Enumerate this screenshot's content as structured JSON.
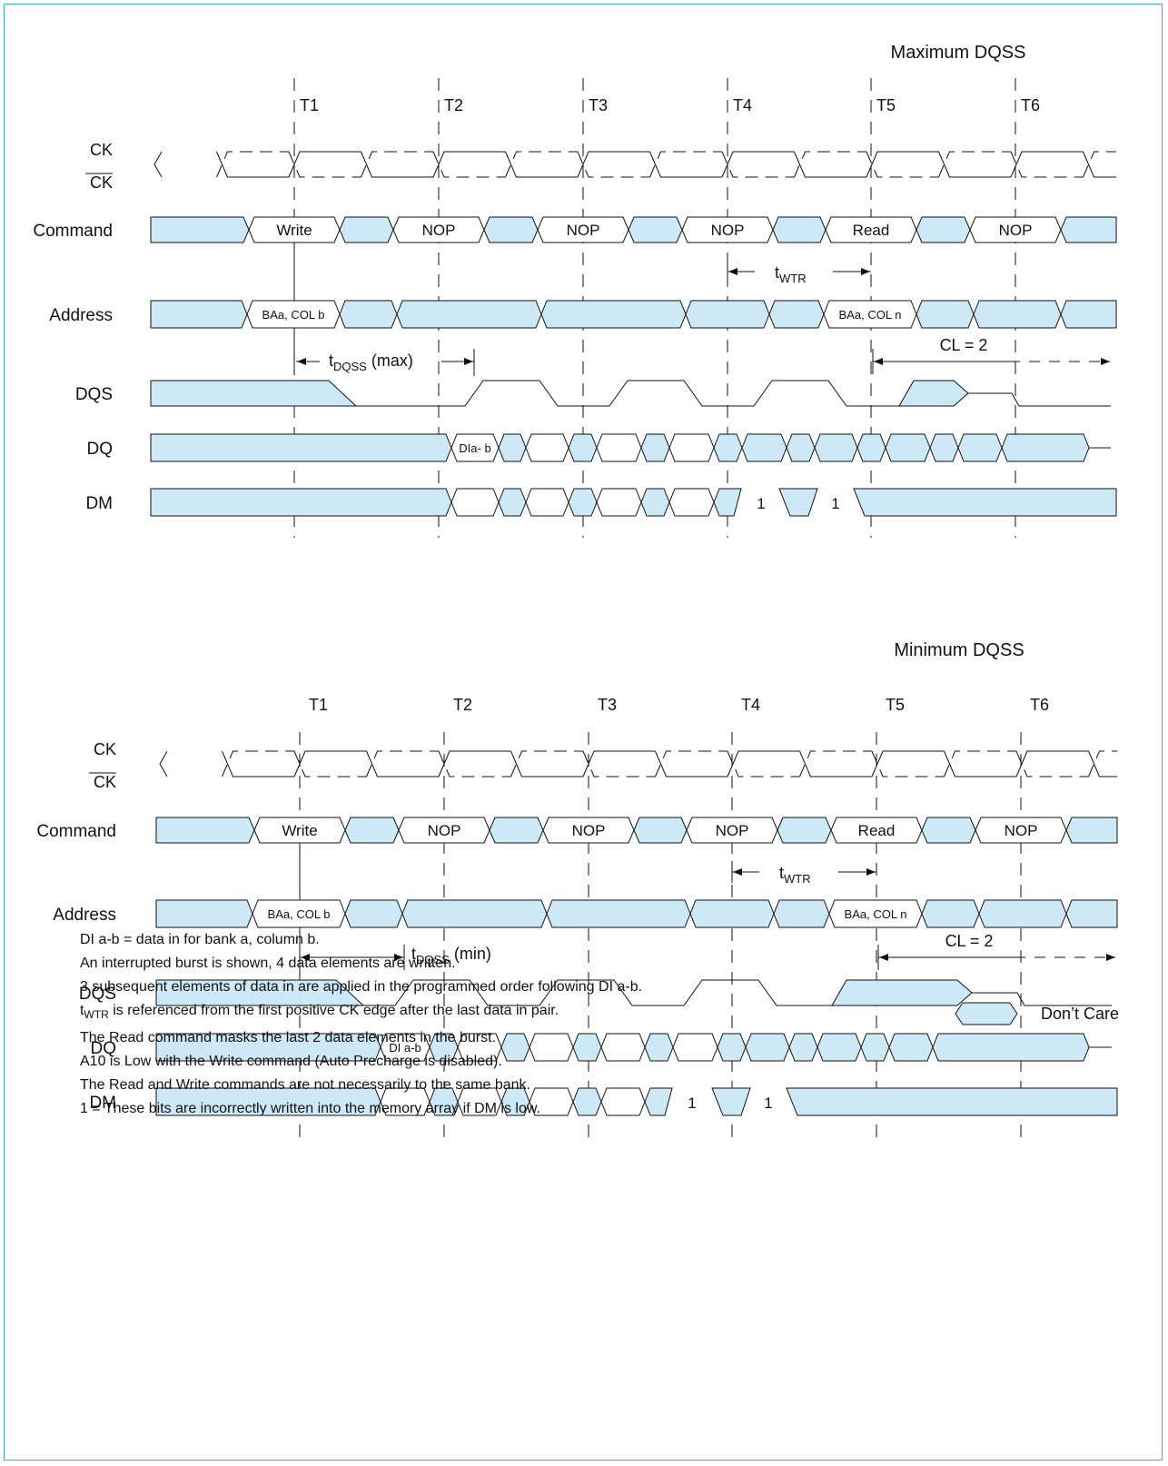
{
  "colors": {
    "dont_care": "#cde8f6",
    "stroke": "#111111",
    "frame": "#4aa3d8"
  },
  "panels": [
    {
      "title": "Maximum DQSS",
      "ticks": [
        "T1",
        "T2",
        "T3",
        "T4",
        "T5",
        "T6"
      ],
      "signals": {
        "ck": "CK",
        "ck_bar": "CK",
        "command": "Command",
        "address": "Address",
        "dqs": "DQS",
        "dq": "DQ",
        "dm": "DM"
      },
      "commands": [
        "Write",
        "NOP",
        "NOP",
        "NOP",
        "Read",
        "NOP"
      ],
      "address": [
        "BAa, COL b",
        "BAa, COL n"
      ],
      "dq_label": "DIa- b",
      "dm_ones": [
        "1",
        "1"
      ],
      "twtr": {
        "t": "t",
        "sub": "WTR"
      },
      "tdqss": {
        "t": "t",
        "sub": "DQSS",
        "suffix": " (max)"
      },
      "cl": "CL = 2"
    },
    {
      "title": "Minimum DQSS",
      "ticks": [
        "T1",
        "T2",
        "T3",
        "T4",
        "T5",
        "T6"
      ],
      "signals": {
        "ck": "CK",
        "ck_bar": "CK",
        "command": "Command",
        "address": "Address",
        "dqs": "DQS",
        "dq": "DQ",
        "dm": "DM"
      },
      "commands": [
        "Write",
        "NOP",
        "NOP",
        "NOP",
        "Read",
        "NOP"
      ],
      "address": [
        "BAa, COL b",
        "BAa, COL n"
      ],
      "dq_label": "DI a-b",
      "dm_ones": [
        "1",
        "1"
      ],
      "twtr": {
        "t": "t",
        "sub": "WTR"
      },
      "tdqss": {
        "t": "t",
        "sub": "DQSS",
        "suffix": " (min)"
      },
      "cl": "CL = 2"
    }
  ],
  "notes": {
    "n1": "DI a-b = data in for bank a, column b.",
    "n2": "An interrupted burst is shown, 4 data elements are written.",
    "n3": "3 subsequent elements of data in are applied in the programmed order following DI a-b.",
    "n4_t": "t",
    "n4_sub": "WTR",
    "n4_rest": " is referenced from the first positive CK edge after the last data in pair.",
    "n5": "The Read command masks the last 2 data elements in the burst.",
    "n6": "A10 is Low with the Write command (Auto Precharge is disabled).",
    "n7": "The Read and Write commands are not necessarily to the same bank.",
    "n8": "1 = These bits are incorrectly written into the memory array if DM is low."
  },
  "legend": {
    "label": "Don’t Care"
  }
}
